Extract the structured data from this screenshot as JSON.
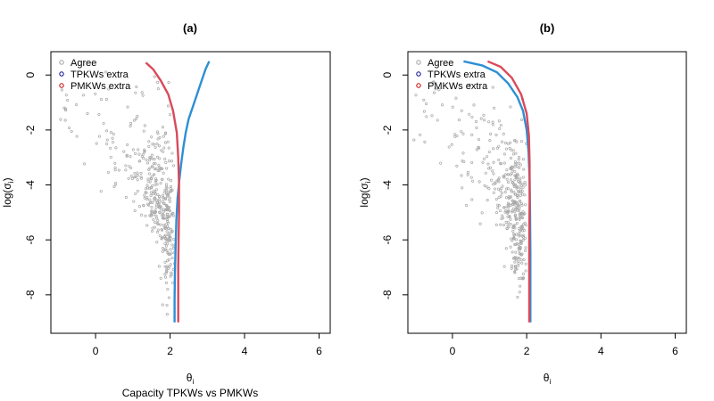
{
  "chart_data": [
    {
      "type": "scatter",
      "title": "(a)",
      "xlabel": "θ_i",
      "ylabel": "log(σ_i)",
      "subtitle": "Capacity TPKWs vs PMKWs",
      "xlim": [
        -1.2,
        6.3
      ],
      "ylim": [
        -9.4,
        0.85
      ],
      "x_ticks": [
        0,
        2,
        4,
        6
      ],
      "y_ticks": [
        0,
        -2,
        -4,
        -6,
        -8
      ],
      "grid": false,
      "legend_position": "top-left",
      "legend": [
        {
          "label": "Agree",
          "color": "#9e9e9e"
        },
        {
          "label": "TPKWs extra",
          "color": "#00008b"
        },
        {
          "label": "PMKWs extra",
          "color": "#cc0000"
        }
      ],
      "series": [
        {
          "name": "TPKWs extra",
          "color": "#2d8fd5",
          "style": "line",
          "points": [
            [
              3.05,
              0.5
            ],
            [
              2.95,
              0.2
            ],
            [
              2.8,
              -0.4
            ],
            [
              2.65,
              -1.0
            ],
            [
              2.5,
              -1.6
            ],
            [
              2.42,
              -2.1
            ],
            [
              2.36,
              -2.6
            ],
            [
              2.3,
              -3.2
            ],
            [
              2.25,
              -3.8
            ],
            [
              2.2,
              -4.5
            ],
            [
              2.17,
              -5.3
            ],
            [
              2.15,
              -6.2
            ],
            [
              2.13,
              -7.2
            ],
            [
              2.12,
              -8.2
            ],
            [
              2.12,
              -9.0
            ]
          ]
        },
        {
          "name": "PMKWs extra",
          "color": "#d94a5a",
          "style": "line",
          "points": [
            [
              1.35,
              0.45
            ],
            [
              1.55,
              0.2
            ],
            [
              1.75,
              -0.2
            ],
            [
              1.95,
              -0.7
            ],
            [
              2.08,
              -1.3
            ],
            [
              2.18,
              -2.1
            ],
            [
              2.22,
              -3.0
            ],
            [
              2.24,
              -4.0
            ],
            [
              2.24,
              -5.0
            ],
            [
              2.23,
              -6.0
            ],
            [
              2.22,
              -7.0
            ],
            [
              2.22,
              -8.0
            ],
            [
              2.22,
              -9.0
            ]
          ]
        }
      ],
      "scatter_note": "grey points labeled Agree"
    },
    {
      "type": "scatter",
      "title": "(b)",
      "xlabel": "θ_i",
      "ylabel": "log(σ_i)",
      "xlim": [
        -1.2,
        6.3
      ],
      "ylim": [
        -9.4,
        0.85
      ],
      "x_ticks": [
        0,
        2,
        4,
        6
      ],
      "y_ticks": [
        0,
        -2,
        -4,
        -6,
        -8
      ],
      "grid": false,
      "legend_position": "top-left",
      "legend": [
        {
          "label": "Agree",
          "color": "#9e9e9e"
        },
        {
          "label": "TPKWs extra",
          "color": "#00008b"
        },
        {
          "label": "PMKWs extra",
          "color": "#cc0000"
        }
      ],
      "series": [
        {
          "name": "TPKWs extra",
          "color": "#2d8fd5",
          "style": "line",
          "points": [
            [
              0.3,
              0.5
            ],
            [
              0.8,
              0.35
            ],
            [
              1.2,
              0.1
            ],
            [
              1.5,
              -0.3
            ],
            [
              1.75,
              -0.8
            ],
            [
              1.9,
              -1.3
            ],
            [
              2.0,
              -2.0
            ],
            [
              2.05,
              -2.8
            ],
            [
              2.08,
              -3.8
            ],
            [
              2.09,
              -5.0
            ],
            [
              2.1,
              -6.5
            ],
            [
              2.1,
              -8.0
            ],
            [
              2.1,
              -9.0
            ]
          ]
        },
        {
          "name": "PMKWs extra",
          "color": "#d94a5a",
          "style": "line",
          "points": [
            [
              0.95,
              0.5
            ],
            [
              1.3,
              0.3
            ],
            [
              1.6,
              -0.1
            ],
            [
              1.85,
              -0.7
            ],
            [
              2.0,
              -1.4
            ],
            [
              2.06,
              -2.2
            ],
            [
              2.08,
              -3.2
            ],
            [
              2.08,
              -4.5
            ],
            [
              2.07,
              -6.0
            ],
            [
              2.07,
              -7.5
            ],
            [
              2.07,
              -9.0
            ]
          ]
        }
      ],
      "scatter_note": "grey points labeled Agree"
    }
  ]
}
